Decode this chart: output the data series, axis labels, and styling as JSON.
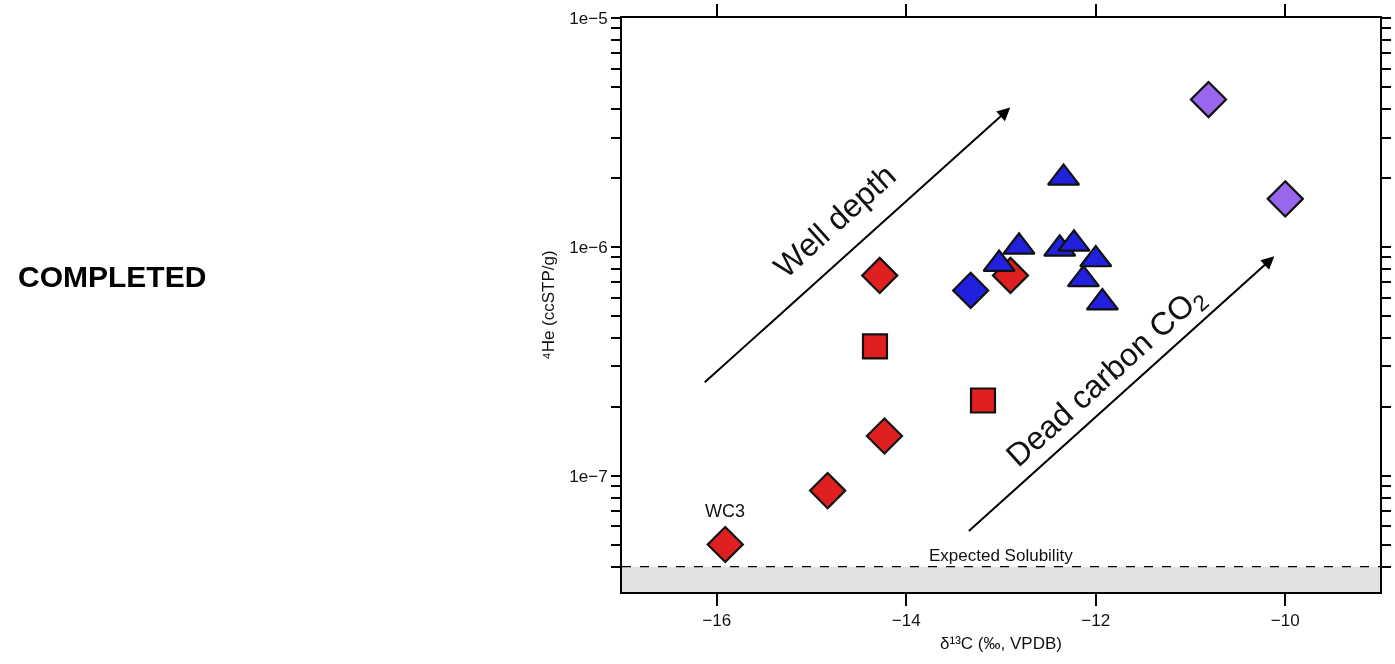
{
  "chart_data": {
    "type": "scatter",
    "xlabel": "δ¹³C (‰, VPDB)",
    "ylabel": "⁴He (ccSTP/g)",
    "log": "y",
    "grid": false,
    "xlim": [
      -17,
      -9
    ],
    "xticks": [
      {
        "value": -16,
        "label": "−16"
      },
      {
        "value": -14,
        "label": "−14"
      },
      {
        "value": -12,
        "label": "−12"
      },
      {
        "value": -10,
        "label": "−10"
      }
    ],
    "ylim": [
      3.1e-08,
      1e-05
    ],
    "yticks": [
      {
        "value": 4e-08,
        "label": null
      },
      {
        "value": 5e-08,
        "label": null
      },
      {
        "value": 6e-08,
        "label": null
      },
      {
        "value": 7e-08,
        "label": null
      },
      {
        "value": 8e-08,
        "label": null
      },
      {
        "value": 9e-08,
        "label": null
      },
      {
        "value": 1e-07,
        "label": "1e−7"
      },
      {
        "value": 2e-07,
        "label": null
      },
      {
        "value": 3e-07,
        "label": null
      },
      {
        "value": 4e-07,
        "label": null
      },
      {
        "value": 5e-07,
        "label": null
      },
      {
        "value": 6e-07,
        "label": null
      },
      {
        "value": 7e-07,
        "label": null
      },
      {
        "value": 8e-07,
        "label": null
      },
      {
        "value": 9e-07,
        "label": null
      },
      {
        "value": 1e-06,
        "label": "1e−6"
      },
      {
        "value": 2e-06,
        "label": null
      },
      {
        "value": 3e-06,
        "label": null
      },
      {
        "value": 4e-06,
        "label": null
      },
      {
        "value": 5e-06,
        "label": null
      },
      {
        "value": 6e-06,
        "label": null
      },
      {
        "value": 7e-06,
        "label": null
      },
      {
        "value": 8e-06,
        "label": null
      },
      {
        "value": 9e-06,
        "label": null
      },
      {
        "value": 1e-05,
        "label": "1e−5"
      }
    ],
    "series": [
      {
        "color": "#e02020",
        "marker": "diamond",
        "x": [
          -15.91,
          -14.83,
          -14.23,
          -14.28,
          -12.9
        ],
        "values": [
          5e-08,
          8.6e-08,
          1.49e-07,
          7.5e-07,
          7.5e-07
        ]
      },
      {
        "color": "#e02020",
        "marker": "square",
        "x": [
          -14.33,
          -13.19
        ],
        "values": [
          3.67e-07,
          2.13e-07
        ]
      },
      {
        "color": "#2020dd",
        "marker": "diamond",
        "x": [
          -13.32
        ],
        "values": [
          6.45e-07
        ]
      },
      {
        "color": "#2020dd",
        "marker": "triangle",
        "x": [
          -12.34,
          -12.81,
          -13.02,
          -12.38,
          -12.23,
          -12.0,
          -12.13,
          -11.93
        ],
        "values": [
          2e-06,
          1e-06,
          8.4e-07,
          9.8e-07,
          1.03e-06,
          8.8e-07,
          7.2e-07,
          5.7e-07
        ]
      },
      {
        "color": "#9966ee",
        "marker": "diamond",
        "x": [
          -10.81,
          -10.0
        ],
        "values": [
          4.4e-06,
          1.62e-06
        ]
      }
    ],
    "ref_lines": [
      {
        "axis": "y",
        "value": 4e-08,
        "label": "Expected Solubility",
        "color": "#000000",
        "line_style": "dashed"
      }
    ],
    "bands": [
      {
        "axis": "y",
        "from": 3.1e-08,
        "to": 4e-08,
        "color": "#e0e2e4"
      }
    ],
    "annotations": [
      "WC3",
      "Well depth",
      "Dead carbon CO$_{2}$",
      "COMPLETED"
    ]
  }
}
